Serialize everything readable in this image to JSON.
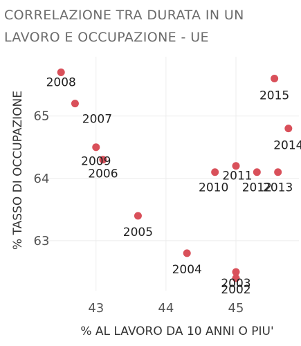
{
  "chart_data": {
    "type": "scatter",
    "title_lines": [
      "CORRELAZIONE TRA DURATA IN UN",
      "LAVORO E OCCUPAZIONE - UE"
    ],
    "xlabel": "% AL LAVORO DA 10 ANNI O PIU'",
    "ylabel": "% TASSO DI OCCUPAZIONE",
    "xlim": [
      42.3,
      45.9
    ],
    "ylim": [
      62.2,
      65.95
    ],
    "xticks": [
      43,
      44,
      45
    ],
    "yticks": [
      63,
      64,
      65
    ],
    "grid": true,
    "marker_color": "#d9505a",
    "points": [
      {
        "label": "2008",
        "x": 42.5,
        "y": 65.7
      },
      {
        "label": "2007",
        "x": 42.7,
        "y": 65.2
      },
      {
        "label": "2009",
        "x": 43.0,
        "y": 64.5
      },
      {
        "label": "2006",
        "x": 43.1,
        "y": 64.3
      },
      {
        "label": "2005",
        "x": 43.6,
        "y": 63.4
      },
      {
        "label": "2004",
        "x": 44.3,
        "y": 62.8
      },
      {
        "label": "2003",
        "x": 45.0,
        "y": 62.5
      },
      {
        "label": "2002",
        "x": 45.0,
        "y": 62.4
      },
      {
        "label": "2010",
        "x": 44.7,
        "y": 64.1
      },
      {
        "label": "2011",
        "x": 45.0,
        "y": 64.2
      },
      {
        "label": "2012",
        "x": 45.3,
        "y": 64.1
      },
      {
        "label": "2013",
        "x": 45.6,
        "y": 64.1
      },
      {
        "label": "2014",
        "x": 45.75,
        "y": 64.8
      },
      {
        "label": "2015",
        "x": 45.55,
        "y": 65.6
      }
    ]
  }
}
